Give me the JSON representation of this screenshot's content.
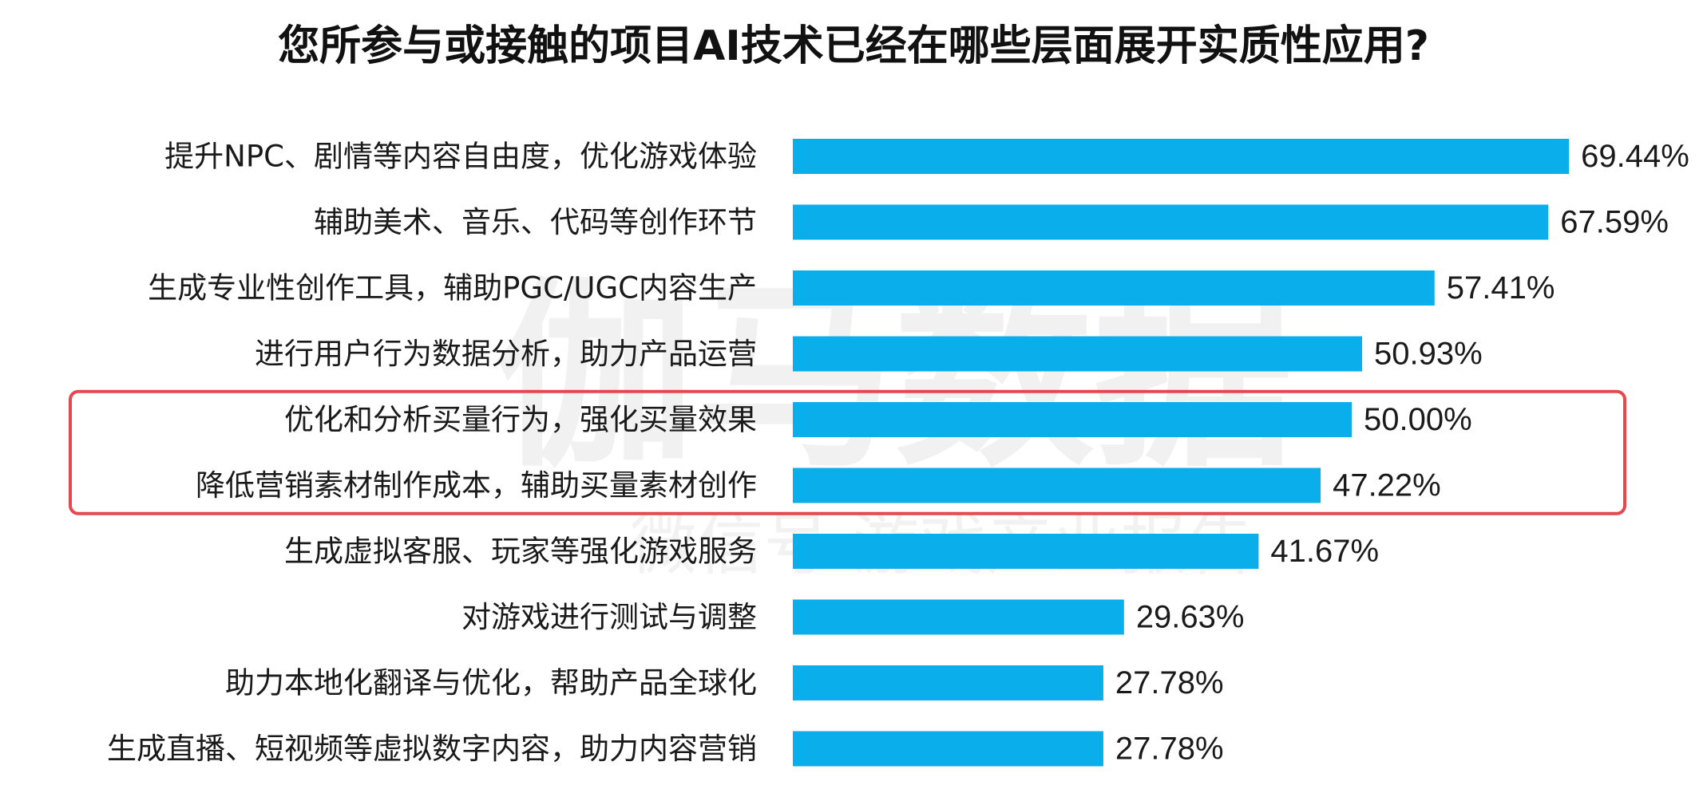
{
  "chart_data": {
    "type": "bar",
    "orientation": "horizontal",
    "title": "您所参与或接触的项目AI技术已经在哪些层面展开实质性应用?",
    "categories": [
      "提升NPC、剧情等内容自由度，优化游戏体验",
      "辅助美术、音乐、代码等创作环节",
      "生成专业性创作工具，辅助PGC/UGC内容生产",
      "进行用户行为数据分析，助力产品运营",
      "优化和分析买量行为，强化买量效果",
      "降低营销素材制作成本，辅助买量素材创作",
      "生成虚拟客服、玩家等强化游戏服务",
      "对游戏进行测试与调整",
      "助力本地化翻译与优化，帮助产品全球化",
      "生成直播、短视频等虚拟数字内容，助力内容营销"
    ],
    "values": [
      69.44,
      67.59,
      57.41,
      50.93,
      50.0,
      47.22,
      41.67,
      29.63,
      27.78,
      27.78
    ],
    "value_labels": [
      "69.44%",
      "67.59%",
      "57.41%",
      "50.93%",
      "50.00%",
      "47.22%",
      "41.67%",
      "29.63%",
      "27.78%",
      "27.78%"
    ],
    "unit": "%",
    "xlim": [
      0,
      100
    ],
    "grid": false,
    "legend": "none",
    "bar_color": "#0AAEEA",
    "highlight": {
      "category_indices": [
        4,
        5
      ],
      "color": "#E5484D"
    },
    "watermark": {
      "main": "伽马数据",
      "sub": "微信号·游戏产业报告"
    }
  }
}
